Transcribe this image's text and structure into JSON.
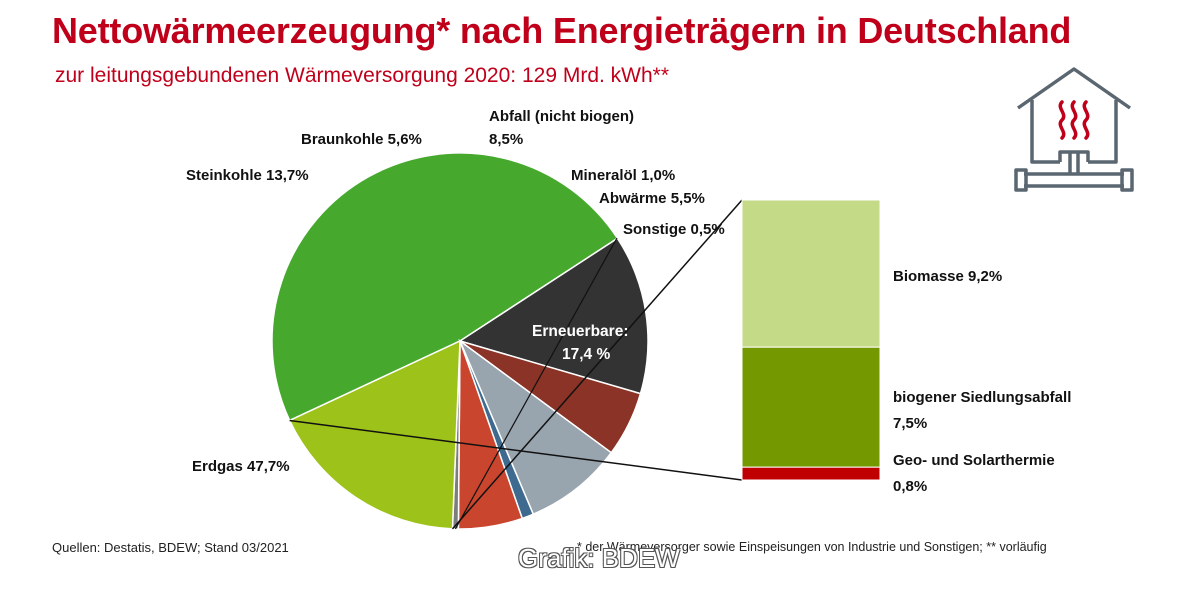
{
  "title": "Nettowärmeerzeugung* nach Energieträgern in Deutschland",
  "subtitle": "zur leitungsgebundenen Wärmeversorgung 2020: 129 Mrd. kWh**",
  "footnote_sources": "Quellen: Destatis, BDEW; Stand 03/2021",
  "footnote_notes": "* der Wärmeversorger sowie Einspeisungen von Industrie und Sonstigen; ** vorläufig",
  "credit": "Grafik: BDEW",
  "icons": {
    "house": "house-heating-icon"
  },
  "colors": {
    "title": "#c0001a",
    "erdgas": "#46a92d",
    "steinkohle": "#333333",
    "braunkohle": "#8b3326",
    "abfall": "#98a4ae",
    "mineraloel": "#3d6a8e",
    "abwaerme": "#c9452e",
    "sonstige": "#7d7d7d",
    "erneuerbare": "#9dc21a",
    "biomasse": "#c5da86",
    "siedlungsabfall": "#749800",
    "geo_solar": "#c00000"
  },
  "chart_data": {
    "type": "pie",
    "title": "Nettowärmeerzeugung* nach Energieträgern in Deutschland",
    "subtitle": "zur leitungsgebundenen Wärmeversorgung 2020: 129 Mrd. kWh**",
    "unit": "%",
    "slices": [
      {
        "key": "erdgas",
        "label": "Erdgas 47,7%",
        "value": 47.7
      },
      {
        "key": "steinkohle",
        "label": "Steinkohle 13,7%",
        "value": 13.7
      },
      {
        "key": "braunkohle",
        "label": "Braunkohle 5,6%",
        "value": 5.6
      },
      {
        "key": "abfall",
        "label": "Abfall (nicht biogen)",
        "label2": "8,5%",
        "value": 8.5
      },
      {
        "key": "mineraloel",
        "label": "Mineralöl 1,0%",
        "value": 1.0
      },
      {
        "key": "abwaerme",
        "label": "Abwärme 5,5%",
        "value": 5.5
      },
      {
        "key": "sonstige",
        "label": "Sonstige 0,5%",
        "value": 0.5
      },
      {
        "key": "erneuerbare",
        "label": "Erneuerbare:",
        "label2": "17,4 %",
        "value": 17.4
      }
    ],
    "breakdown": {
      "of": "erneuerbare",
      "type": "stacked-bar",
      "segments": [
        {
          "key": "biomasse",
          "label": "Biomasse 9,2%",
          "value": 9.2
        },
        {
          "key": "siedlungsabfall",
          "label": "biogener Siedlungsabfall",
          "label2": "7,5%",
          "value": 7.5
        },
        {
          "key": "geo_solar",
          "label": "Geo- und Solarthermie",
          "label2": "0,8%",
          "value": 0.8
        }
      ]
    }
  }
}
